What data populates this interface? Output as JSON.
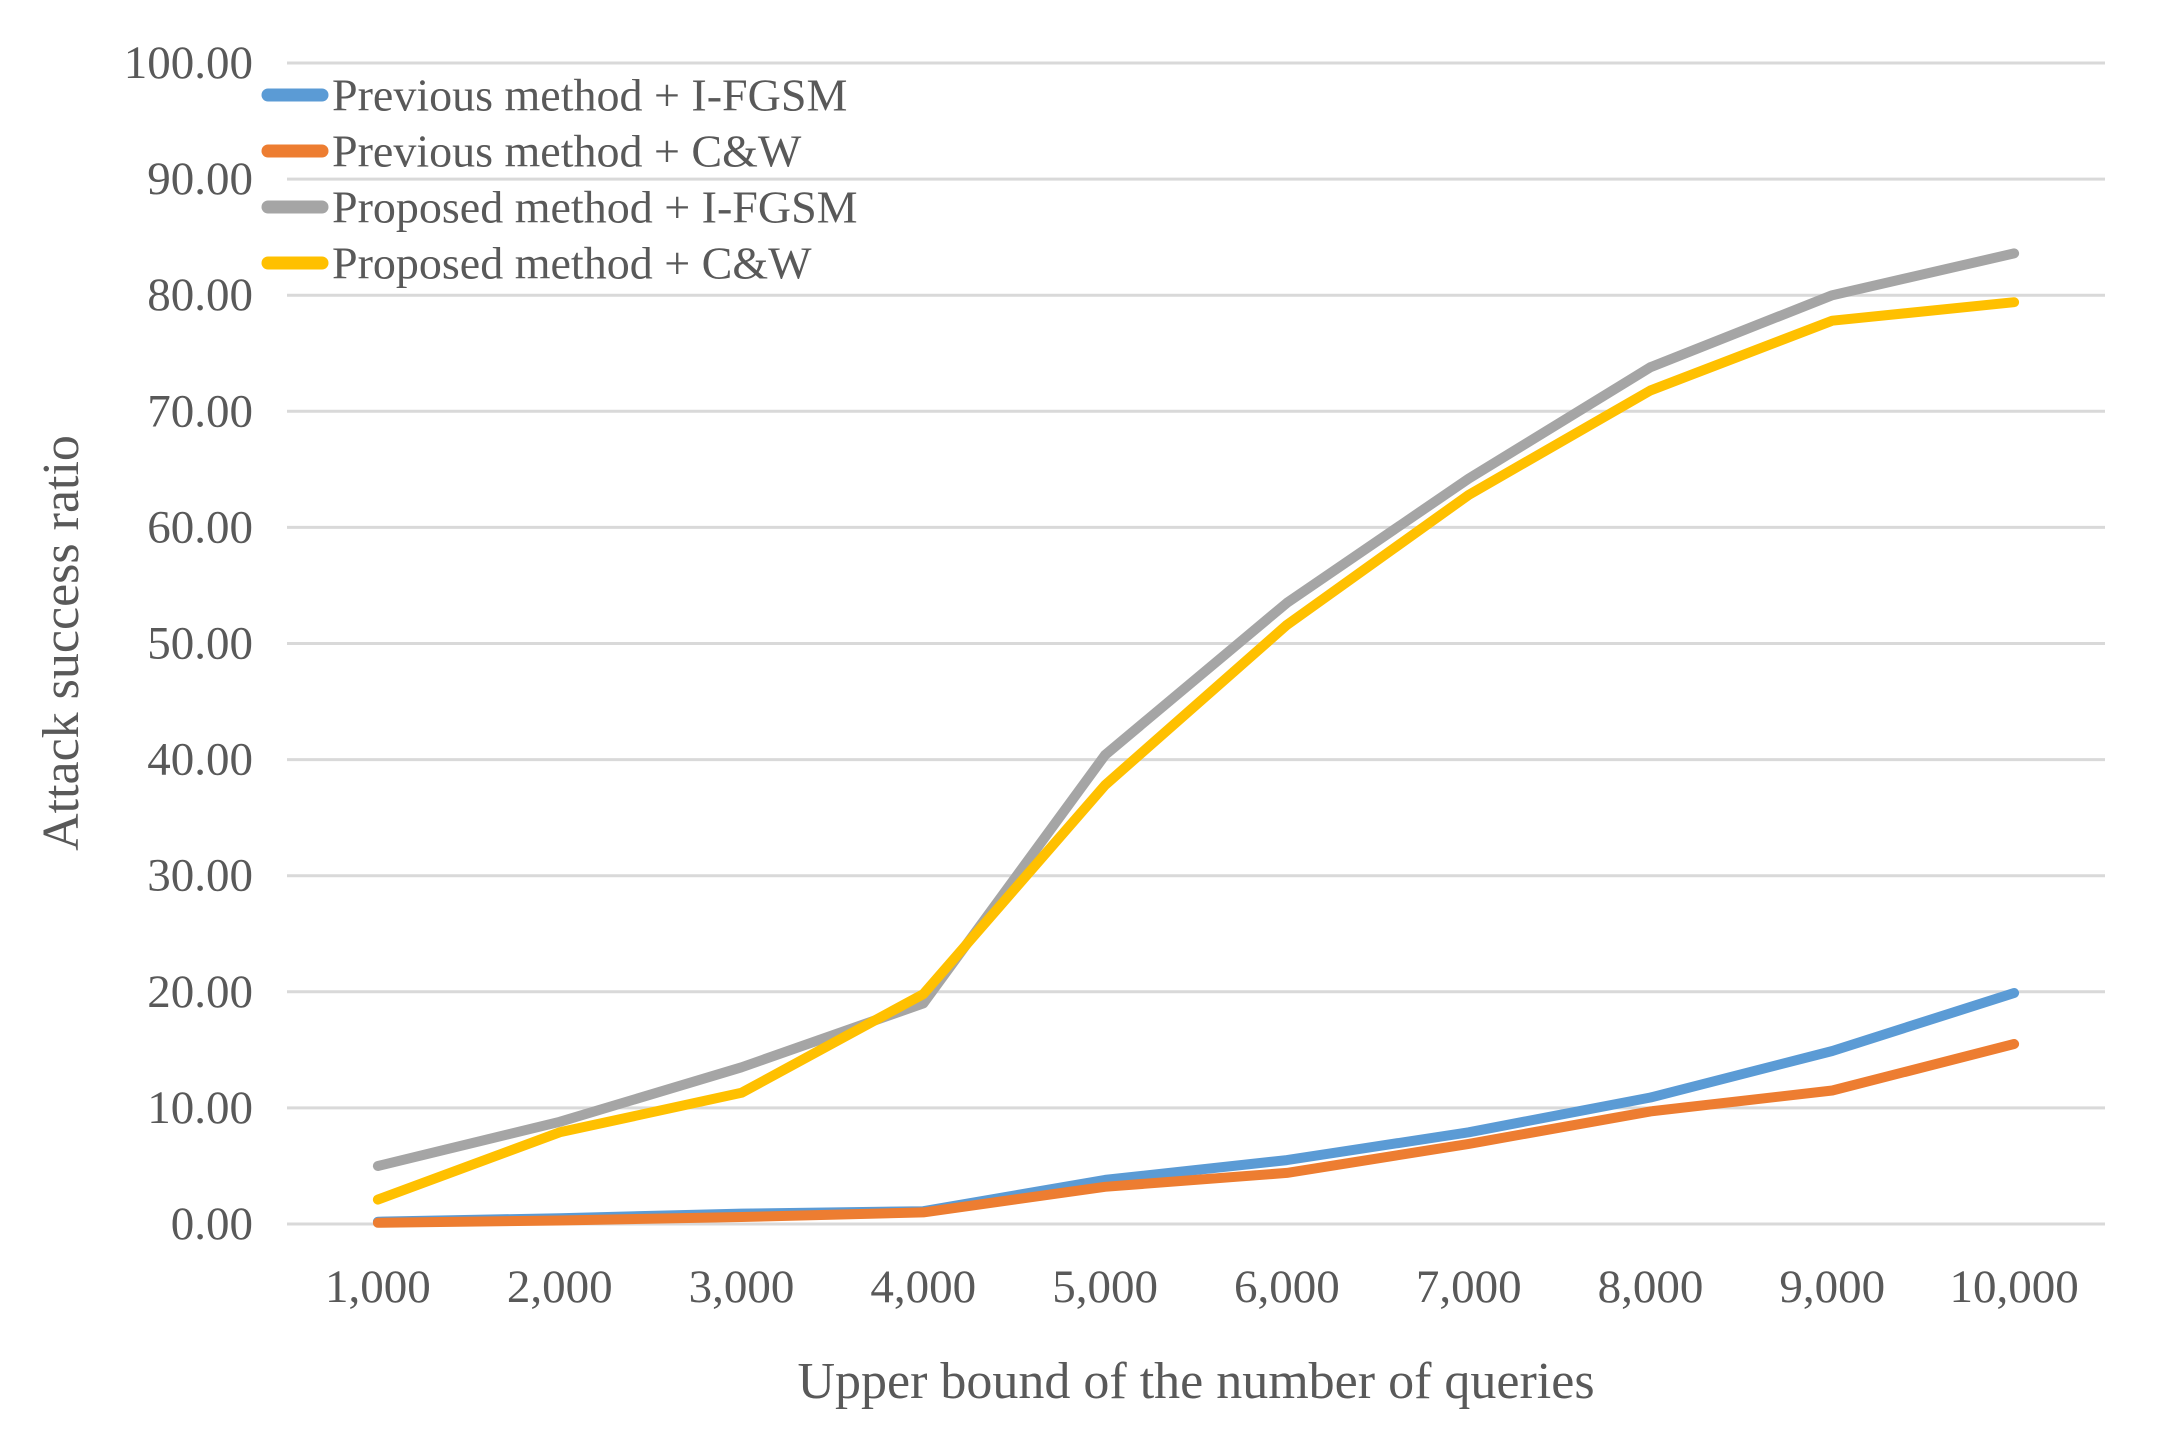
{
  "chart_data": {
    "type": "line",
    "title": "",
    "xlabel": "Upper bound of the number of queries",
    "ylabel": "Attack success ratio",
    "categories": [
      "1,000",
      "2,000",
      "3,000",
      "4,000",
      "5,000",
      "6,000",
      "7,000",
      "8,000",
      "9,000",
      "10,000"
    ],
    "series": [
      {
        "name": "Previous method + I-FGSM",
        "color": "#5B9BD5",
        "values": [
          0.2,
          0.5,
          0.9,
          1.1,
          3.8,
          5.5,
          7.9,
          10.9,
          14.9,
          19.9
        ]
      },
      {
        "name": "Previous method + C&W",
        "color": "#ED7D31",
        "values": [
          0.1,
          0.3,
          0.6,
          1.0,
          3.2,
          4.4,
          6.9,
          9.7,
          11.5,
          15.5
        ]
      },
      {
        "name": "Proposed method + I-FGSM",
        "color": "#A5A5A5",
        "values": [
          5.0,
          8.8,
          13.5,
          19.0,
          40.4,
          53.5,
          64.2,
          73.8,
          80.0,
          83.6
        ]
      },
      {
        "name": "Proposed method + C&W",
        "color": "#FFC000",
        "values": [
          2.1,
          7.9,
          11.3,
          19.8,
          37.8,
          51.6,
          62.8,
          71.8,
          77.8,
          79.4
        ]
      }
    ],
    "ylim": [
      0,
      100
    ],
    "ytick_step": 10,
    "ytick_labels": [
      "0.00",
      "10.00",
      "20.00",
      "30.00",
      "40.00",
      "50.00",
      "60.00",
      "70.00",
      "80.00",
      "90.00",
      "100.00"
    ],
    "grid": "horizontal",
    "legend_position": "top-left",
    "colors": {
      "gridline": "#D9D9D9",
      "axis_text": "#595959",
      "legend_text": "#595959",
      "background": "#FFFFFF"
    }
  }
}
